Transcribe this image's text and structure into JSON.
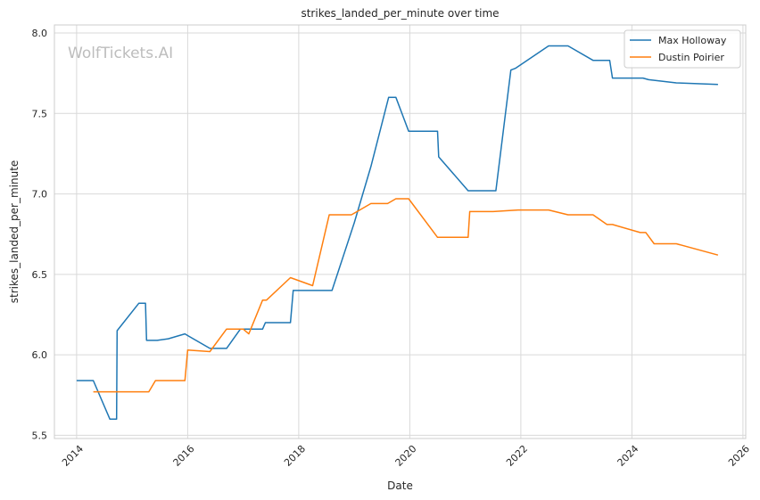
{
  "chart_data": {
    "type": "line",
    "title": "strikes_landed_per_minute over time",
    "xlabel": "Date",
    "ylabel": "strikes_landed_per_minute",
    "watermark": "WolfTickets.AI",
    "xlim": [
      2013.6,
      2026.05
    ],
    "ylim": [
      5.48,
      8.05
    ],
    "x_ticks": [
      2014,
      2016,
      2018,
      2020,
      2022,
      2024,
      2026
    ],
    "x_tick_labels": [
      "2014",
      "2016",
      "2018",
      "2020",
      "2022",
      "2024",
      "2026"
    ],
    "y_ticks": [
      5.5,
      6.0,
      6.5,
      7.0,
      7.5,
      8.0
    ],
    "y_tick_labels": [
      "5.5",
      "6.0",
      "6.5",
      "7.0",
      "7.5",
      "8.0"
    ],
    "grid": true,
    "legend_position": "top-right",
    "series": [
      {
        "name": "Max Holloway",
        "color": "#1f77b4",
        "points": [
          [
            2014.0,
            5.84
          ],
          [
            2014.3,
            5.84
          ],
          [
            2014.6,
            5.6
          ],
          [
            2014.72,
            5.6
          ],
          [
            2014.73,
            6.15
          ],
          [
            2015.12,
            6.32
          ],
          [
            2015.24,
            6.32
          ],
          [
            2015.26,
            6.09
          ],
          [
            2015.45,
            6.09
          ],
          [
            2015.65,
            6.1
          ],
          [
            2015.95,
            6.13
          ],
          [
            2016.0,
            6.12
          ],
          [
            2016.4,
            6.04
          ],
          [
            2016.7,
            6.04
          ],
          [
            2016.95,
            6.16
          ],
          [
            2017.35,
            6.16
          ],
          [
            2017.4,
            6.2
          ],
          [
            2017.85,
            6.2
          ],
          [
            2017.9,
            6.4
          ],
          [
            2018.6,
            6.4
          ],
          [
            2019.0,
            6.82
          ],
          [
            2019.3,
            7.17
          ],
          [
            2019.62,
            7.6
          ],
          [
            2019.75,
            7.6
          ],
          [
            2019.98,
            7.39
          ],
          [
            2020.5,
            7.39
          ],
          [
            2020.52,
            7.23
          ],
          [
            2021.05,
            7.02
          ],
          [
            2021.55,
            7.02
          ],
          [
            2021.82,
            7.77
          ],
          [
            2021.9,
            7.78
          ],
          [
            2022.5,
            7.92
          ],
          [
            2022.85,
            7.92
          ],
          [
            2023.3,
            7.83
          ],
          [
            2023.6,
            7.83
          ],
          [
            2023.65,
            7.72
          ],
          [
            2024.2,
            7.72
          ],
          [
            2024.3,
            7.71
          ],
          [
            2024.8,
            7.69
          ],
          [
            2025.55,
            7.68
          ]
        ]
      },
      {
        "name": "Dustin Poirier",
        "color": "#ff7f0e",
        "points": [
          [
            2014.3,
            5.77
          ],
          [
            2015.15,
            5.77
          ],
          [
            2015.3,
            5.77
          ],
          [
            2015.42,
            5.84
          ],
          [
            2015.95,
            5.84
          ],
          [
            2016.0,
            6.03
          ],
          [
            2016.4,
            6.02
          ],
          [
            2016.7,
            6.16
          ],
          [
            2017.0,
            6.16
          ],
          [
            2017.1,
            6.13
          ],
          [
            2017.35,
            6.34
          ],
          [
            2017.42,
            6.34
          ],
          [
            2017.85,
            6.48
          ],
          [
            2018.25,
            6.43
          ],
          [
            2018.55,
            6.87
          ],
          [
            2018.95,
            6.87
          ],
          [
            2019.3,
            6.94
          ],
          [
            2019.6,
            6.94
          ],
          [
            2019.75,
            6.97
          ],
          [
            2019.98,
            6.97
          ],
          [
            2020.5,
            6.73
          ],
          [
            2021.05,
            6.73
          ],
          [
            2021.08,
            6.89
          ],
          [
            2021.5,
            6.89
          ],
          [
            2021.95,
            6.9
          ],
          [
            2022.5,
            6.9
          ],
          [
            2022.85,
            6.87
          ],
          [
            2023.3,
            6.87
          ],
          [
            2023.55,
            6.81
          ],
          [
            2023.65,
            6.81
          ],
          [
            2024.15,
            6.76
          ],
          [
            2024.25,
            6.76
          ],
          [
            2024.4,
            6.69
          ],
          [
            2024.8,
            6.69
          ],
          [
            2025.55,
            6.62
          ]
        ]
      }
    ]
  }
}
